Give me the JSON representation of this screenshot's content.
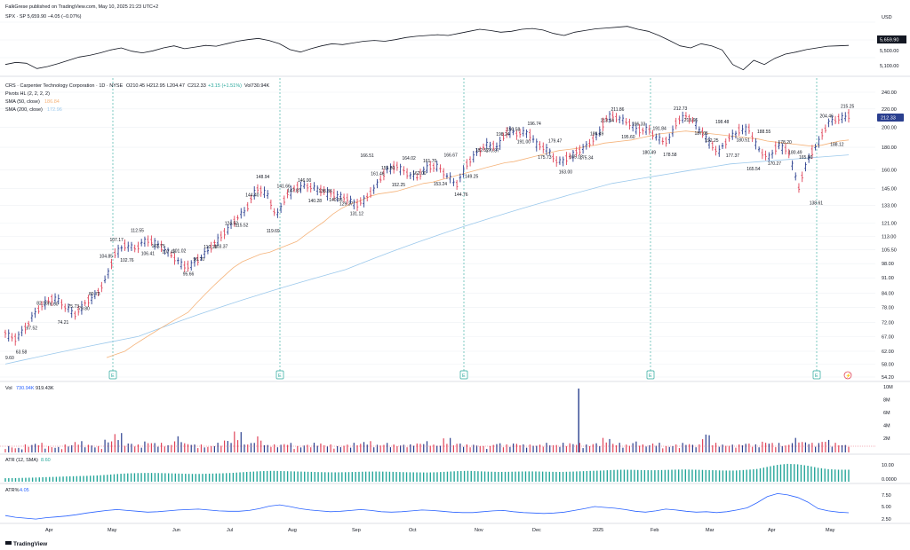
{
  "publisher": "FalkGrese published on TradingView.com, May 10, 2025 21:23 UTC+2",
  "brand": "TradingView",
  "colors": {
    "up": "#2a3f8f",
    "down": "#e0455a",
    "sma50": "#f5b37a",
    "sma200": "#9cc9ec",
    "hist": "#26a69a",
    "atrline": "#2962ff",
    "grid": "#eef0f4",
    "earn": "#26a69a"
  },
  "spx_panel": {
    "header": "SPX · SP  5,659.90  −4.05 (−0.07%)",
    "currency": "USD",
    "last_label": "5,659.90",
    "ticks": [
      "5,500.00",
      "5,100.00"
    ]
  },
  "main_panel": {
    "header": {
      "symbol": "CRS · Carpenter Technology Corporation · 1D · NYSE",
      "open": "O210.45",
      "high": "H212.95",
      "low": "L204.47",
      "close": "C212.33",
      "change": "+3.15 (+1.51%)",
      "vol": "Vol730.94K"
    },
    "indicators": [
      {
        "name": "Pivots HL (2, 2, 2, 2)",
        "value": ""
      },
      {
        "name": "SMA (50, close)",
        "value": "186.84"
      },
      {
        "name": "SMA (200, close)",
        "value": "172.96"
      }
    ],
    "price_label": "212.33",
    "y_ticks": [
      "240.00",
      "220.00",
      "200.00",
      "180.00",
      "160.00",
      "145.00",
      "133.00",
      "121.00",
      "113.00",
      "105.50",
      "98.00",
      "91.00",
      "84.00",
      "78.00",
      "72.00",
      "67.00",
      "62.00",
      "58.00",
      "54.20"
    ],
    "earnings_marker": "E",
    "pivot_labels": [
      "9.60",
      "63.58",
      "67.52",
      "82.16",
      "76.60",
      "74.21",
      "75.73",
      "79.80",
      "80.73",
      "104.85",
      "107.17",
      "102.76",
      "112.55",
      "106.41",
      "103.75",
      "107.43",
      "101.02",
      "95.66",
      "96.70",
      "110.18",
      "103.37",
      "124.52",
      "115.52",
      "144.40",
      "148.94",
      "119.69",
      "141.66",
      "147.87",
      "146.00",
      "140.28",
      "138.36",
      "140.95",
      "129.37",
      "131.12",
      "166.51",
      "161.46",
      "155.80",
      "152.25",
      "164.02",
      "162.00",
      "161.70",
      "153.24",
      "166.67",
      "144.76",
      "149.25",
      "182.52",
      "170.87",
      "198.24",
      "190.58",
      "191.00",
      "196.74",
      "175.73",
      "179.47",
      "163.00",
      "165.13",
      "175.34",
      "186.49",
      "213.44",
      "211.86",
      "195.60",
      "196.33",
      "180.49",
      "191.84",
      "178.58",
      "212.73",
      "213.66",
      "187.05",
      "192.25",
      "198.48",
      "177.37",
      "180.51",
      "165.54",
      "188.55",
      "170.27",
      "178.20",
      "180.49",
      "165.00",
      "138.61",
      "204.46",
      "188.12",
      "215.25"
    ]
  },
  "volume_panel": {
    "label": "Vol",
    "value1": "730.94K",
    "value2": "919.43K",
    "y_ticks": [
      "10M",
      "8M",
      "6M",
      "4M",
      "2M"
    ]
  },
  "atr_panel": {
    "label": "ATR (12, SMA)",
    "value": "8.60",
    "y_ticks": [
      "10.00",
      "0.0000"
    ]
  },
  "atrpct_panel": {
    "label": "ATR%",
    "value": "4.05",
    "y_ticks": [
      "7.50",
      "5.00",
      "2.50"
    ]
  },
  "x_axis": [
    "Apr",
    "May",
    "Jun",
    "Jul",
    "Aug",
    "Sep",
    "Oct",
    "Nov",
    "Dec",
    "2025",
    "Feb",
    "Mar",
    "Apr",
    "May"
  ],
  "chart_data": {
    "type": "candlestick",
    "title": "CRS · Carpenter Technology Corporation · 1D · NYSE",
    "ylim": [
      54.2,
      240
    ],
    "y_scale": "log",
    "grid": true,
    "legend_position": "top-left",
    "x_categories": [
      "Apr",
      "May",
      "Jun",
      "Jul",
      "Aug",
      "Sep",
      "Oct",
      "Nov",
      "Dec",
      "2025",
      "Feb",
      "Mar",
      "Apr",
      "May"
    ],
    "close_path": [
      68,
      66,
      70,
      76,
      80,
      82,
      78,
      75,
      80,
      83,
      90,
      104,
      108,
      106,
      111,
      109,
      105,
      100,
      96,
      99,
      104,
      110,
      116,
      124,
      130,
      145,
      142,
      125,
      140,
      146,
      147,
      145,
      142,
      140,
      138,
      133,
      138,
      148,
      160,
      163,
      157,
      154,
      162,
      163,
      155,
      148,
      165,
      175,
      183,
      180,
      196,
      193,
      195,
      182,
      178,
      166,
      170,
      176,
      182,
      192,
      212,
      210,
      205,
      196,
      198,
      188,
      185,
      208,
      212,
      200,
      186,
      175,
      188,
      196,
      199,
      178,
      170,
      182,
      176,
      145,
      170,
      185,
      205,
      209,
      212
    ],
    "sma50_path": [
      60,
      61,
      62,
      64,
      66,
      68,
      70,
      72,
      74,
      76,
      80,
      84,
      88,
      92,
      96,
      99,
      101,
      103,
      104,
      106,
      108,
      110,
      114,
      118,
      122,
      127,
      131,
      134,
      136,
      139,
      141,
      142,
      143,
      145,
      147,
      149,
      150,
      152,
      154,
      156,
      158,
      160,
      162,
      164,
      166,
      167,
      169,
      171,
      173,
      175,
      177,
      178,
      179,
      181,
      182,
      184,
      185,
      186,
      187,
      189,
      191,
      193,
      194,
      195,
      196,
      195,
      194,
      193,
      192,
      191,
      190,
      189,
      188,
      186,
      185,
      184,
      183,
      182,
      181,
      182,
      184,
      186,
      187
    ],
    "sma200_path": [
      58,
      59,
      60,
      61,
      62,
      63,
      64,
      65,
      66,
      67,
      69,
      71,
      73,
      75,
      77,
      79,
      81,
      83,
      85,
      87,
      89,
      91,
      93,
      95,
      98,
      101,
      104,
      107,
      110,
      113,
      116,
      119,
      122,
      125,
      128,
      131,
      134,
      137,
      140,
      143,
      146,
      149,
      151,
      153,
      155,
      157,
      159,
      161,
      163,
      165,
      166,
      167,
      168,
      169,
      170,
      171,
      172,
      173
    ],
    "volume_series": [
      0.4,
      0.3,
      0.5,
      0.6,
      0.4,
      0.35,
      0.5,
      0.7,
      0.5,
      0.4,
      0.8,
      1.2,
      0.6,
      0.5,
      0.7,
      0.6,
      0.5,
      1.0,
      0.6,
      0.5,
      0.4,
      0.6,
      0.8,
      1.3,
      0.6,
      1.0,
      0.5,
      0.5,
      0.6,
      0.4,
      0.5,
      0.6,
      0.5,
      0.4,
      0.5,
      0.6,
      0.7,
      0.5,
      0.6,
      0.5,
      0.5,
      0.6,
      0.7,
      0.5,
      0.9,
      0.6,
      0.5,
      0.5,
      0.4,
      0.6,
      0.5,
      0.6,
      0.5,
      0.5,
      0.6,
      0.5,
      0.6,
      0.6,
      0.5,
      0.6,
      0.9,
      0.6,
      0.5,
      0.7,
      0.5,
      0.6,
      0.4,
      0.5,
      0.6,
      0.5,
      1.2,
      0.6,
      0.5,
      0.5,
      0.6,
      0.5,
      0.7,
      0.6,
      0.5,
      0.9,
      0.7,
      0.6,
      0.8,
      0.6,
      0.5
    ],
    "volume_spike": {
      "position": "late Dec",
      "value": "~10M"
    },
    "atr_values": [
      2.5,
      2.6,
      2.8,
      3.0,
      3.3,
      3.5,
      3.8,
      4.0,
      4.2,
      4.5,
      5.0,
      5.6,
      6.0,
      6.2,
      6.3,
      6.2,
      6.0,
      5.8,
      5.6,
      5.6,
      5.8,
      6.0,
      6.3,
      6.8,
      7.2,
      7.6,
      7.8,
      7.6,
      7.4,
      7.2,
      7.0,
      6.8,
      6.7,
      6.8,
      7.0,
      7.2,
      7.3,
      7.2,
      7.0,
      6.8,
      6.7,
      6.6,
      6.8,
      7.2,
      7.6,
      7.8,
      7.5,
      7.2,
      7.0,
      7.1,
      7.3,
      7.4,
      7.3,
      7.1,
      7.0,
      7.2,
      7.5,
      7.8,
      8.0,
      8.4,
      8.6,
      8.5,
      8.3,
      8.2,
      8.4,
      8.6,
      8.8,
      8.6,
      8.4,
      8.2,
      8.0,
      8.0,
      8.5,
      9.0,
      10.5,
      12.0,
      12.8,
      12.5,
      11.5,
      10.0,
      9.0,
      8.6,
      8.6
    ],
    "atrpct_values": [
      3.4,
      3.0,
      2.8,
      2.6,
      2.9,
      3.1,
      3.3,
      3.6,
      4.0,
      4.3,
      4.6,
      4.8,
      4.6,
      4.4,
      4.2,
      4.3,
      4.5,
      4.7,
      4.8,
      4.9,
      4.7,
      4.5,
      4.4,
      4.4,
      4.6,
      5.0,
      5.6,
      5.9,
      5.5,
      5.0,
      4.7,
      4.5,
      4.3,
      4.4,
      4.6,
      4.8,
      4.6,
      4.3,
      4.2,
      4.3,
      4.5,
      4.7,
      4.6,
      4.4,
      4.2,
      4.1,
      4.1,
      4.3,
      4.5,
      4.6,
      4.3,
      4.1,
      4.0,
      3.9,
      4.0,
      4.2,
      4.6,
      5.0,
      5.5,
      5.3,
      5.1,
      4.8,
      4.4,
      4.2,
      4.5,
      4.9,
      4.7,
      4.4,
      4.2,
      4.3,
      4.1,
      4.3,
      4.7,
      5.2,
      6.4,
      7.8,
      8.5,
      8.2,
      7.6,
      6.5,
      5.0,
      4.5,
      4.2,
      4.05
    ],
    "spx_values": [
      5200,
      5250,
      5230,
      5100,
      5150,
      5220,
      5300,
      5380,
      5420,
      5480,
      5550,
      5600,
      5520,
      5480,
      5530,
      5600,
      5650,
      5580,
      5620,
      5660,
      5640,
      5700,
      5760,
      5800,
      5830,
      5780,
      5700,
      5560,
      5500,
      5580,
      5650,
      5700,
      5680,
      5720,
      5760,
      5780,
      5760,
      5800,
      5850,
      5880,
      5900,
      5920,
      5900,
      5950,
      6000,
      6050,
      6020,
      5980,
      6000,
      6050,
      6070,
      6030,
      5950,
      5900,
      5980,
      6020,
      6060,
      6080,
      6100,
      6120,
      6050,
      6000,
      5900,
      5780,
      5650,
      5600,
      5700,
      5650,
      5550,
      5200,
      5070,
      5300,
      5200,
      5350,
      5450,
      5500,
      5560,
      5600,
      5640,
      5650,
      5660
    ]
  }
}
